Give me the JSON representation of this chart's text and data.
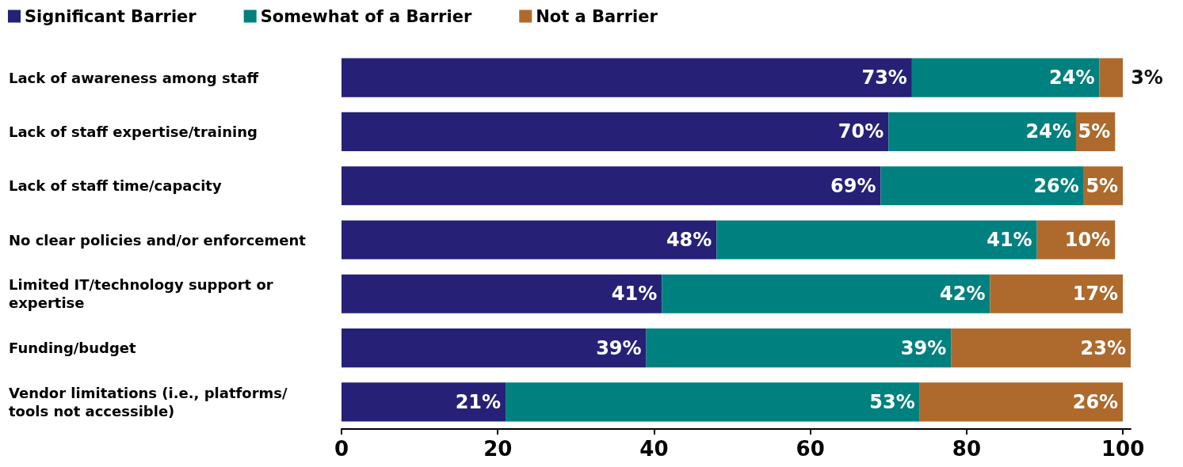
{
  "chart_data": {
    "type": "bar",
    "orientation": "horizontal",
    "stacked": true,
    "categories": [
      "Lack of awareness among staff",
      "Lack of staff expertise/training",
      "Lack of staff time/capacity",
      "No clear policies and/or enforcement",
      "Limited IT/technology support or expertise",
      "Funding/budget",
      "Vendor limitations (i.e., platforms/tools not accessible)"
    ],
    "series": [
      {
        "name": "Significant Barrier",
        "color": "#262177",
        "values": [
          73,
          70,
          69,
          48,
          41,
          39,
          21
        ],
        "value_labels": [
          "73%",
          "70%",
          "69%",
          "48%",
          "41%",
          "39%",
          "21%"
        ]
      },
      {
        "name": "Somewhat of a Barrier",
        "color": "#00807f",
        "values": [
          24,
          24,
          26,
          41,
          42,
          39,
          53
        ],
        "value_labels": [
          "24%",
          "24%",
          "26%",
          "41%",
          "42%",
          "39%",
          "53%"
        ]
      },
      {
        "name": "Not a Barrier",
        "color": "#ad6a2c",
        "values": [
          3,
          5,
          5,
          10,
          17,
          23,
          26
        ],
        "value_labels": [
          "3%",
          "5%",
          "5%",
          "10%",
          "17%",
          "23%",
          "26%"
        ]
      }
    ],
    "xlim": [
      0,
      101
    ],
    "xticks": [
      0,
      20,
      40,
      60,
      80,
      100
    ],
    "grid": false,
    "legend": "top left"
  }
}
